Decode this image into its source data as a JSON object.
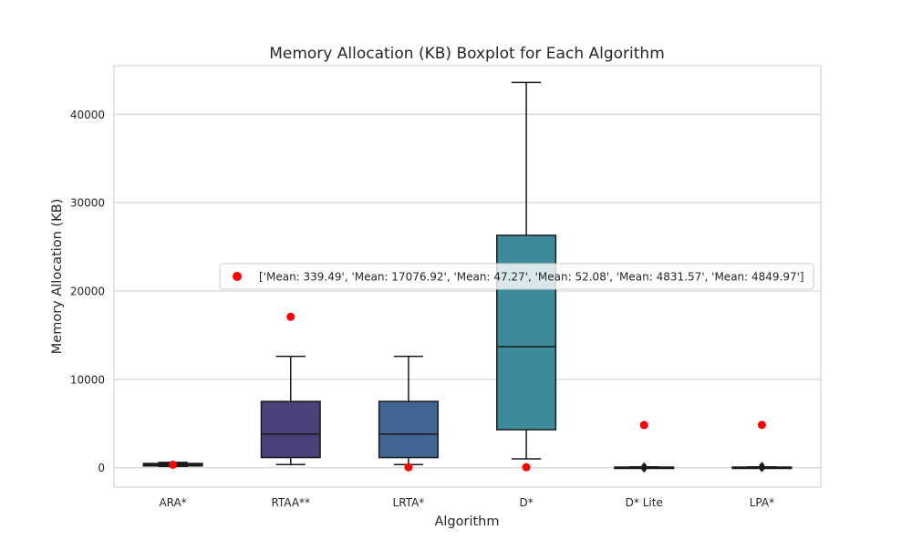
{
  "chart_data": {
    "type": "boxplot",
    "title": "Memory Allocation (KB) Boxplot for Each Algorithm",
    "xlabel": "Algorithm",
    "ylabel": "Memory Allocation (KB)",
    "ylim": [
      -2200,
      45500
    ],
    "yticks": [
      0,
      10000,
      20000,
      30000,
      40000
    ],
    "grid": "horizontal",
    "legend": {
      "position": "center-right",
      "label": "['Mean: 339.49', 'Mean: 17076.92', 'Mean: 47.27', 'Mean: 52.08', 'Mean: 4831.57', 'Mean: 4849.97']",
      "marker_color": "#ff0000"
    },
    "categories": [
      "ARA*",
      "RTAA**",
      "LRTA*",
      "D*",
      "D* Lite",
      "LPA*"
    ],
    "boxes": [
      {
        "label": "ARA*",
        "whisker_low": 150,
        "q1": 200,
        "median": 330,
        "q3": 480,
        "whisker_high": 600,
        "color": "#2d1e3e"
      },
      {
        "label": "RTAA**",
        "whisker_low": 350,
        "q1": 1150,
        "median": 3800,
        "q3": 7500,
        "whisker_high": 12600,
        "color": "#48417a"
      },
      {
        "label": "LRTA*",
        "whisker_low": 350,
        "q1": 1150,
        "median": 3800,
        "q3": 7500,
        "whisker_high": 12600,
        "color": "#426694"
      },
      {
        "label": "D*",
        "whisker_low": 1000,
        "q1": 4300,
        "median": 13700,
        "q3": 26300,
        "whisker_high": 43600,
        "color": "#3d8a9b"
      },
      {
        "label": "D* Lite",
        "whisker_low": 10,
        "q1": 30,
        "median": 50,
        "q3": 70,
        "whisker_high": 100,
        "color": "#3f9e9e",
        "outliers": [
          -200,
          150,
          250
        ]
      },
      {
        "label": "LPA*",
        "whisker_low": 10,
        "q1": 30,
        "median": 50,
        "q3": 70,
        "whisker_high": 100,
        "color": "#4fb59a",
        "outliers": [
          -150,
          200,
          300
        ]
      }
    ],
    "means": [
      339.49,
      17076.92,
      47.27,
      52.08,
      4831.57,
      4849.97
    ],
    "mean_color": "#ff0000"
  }
}
